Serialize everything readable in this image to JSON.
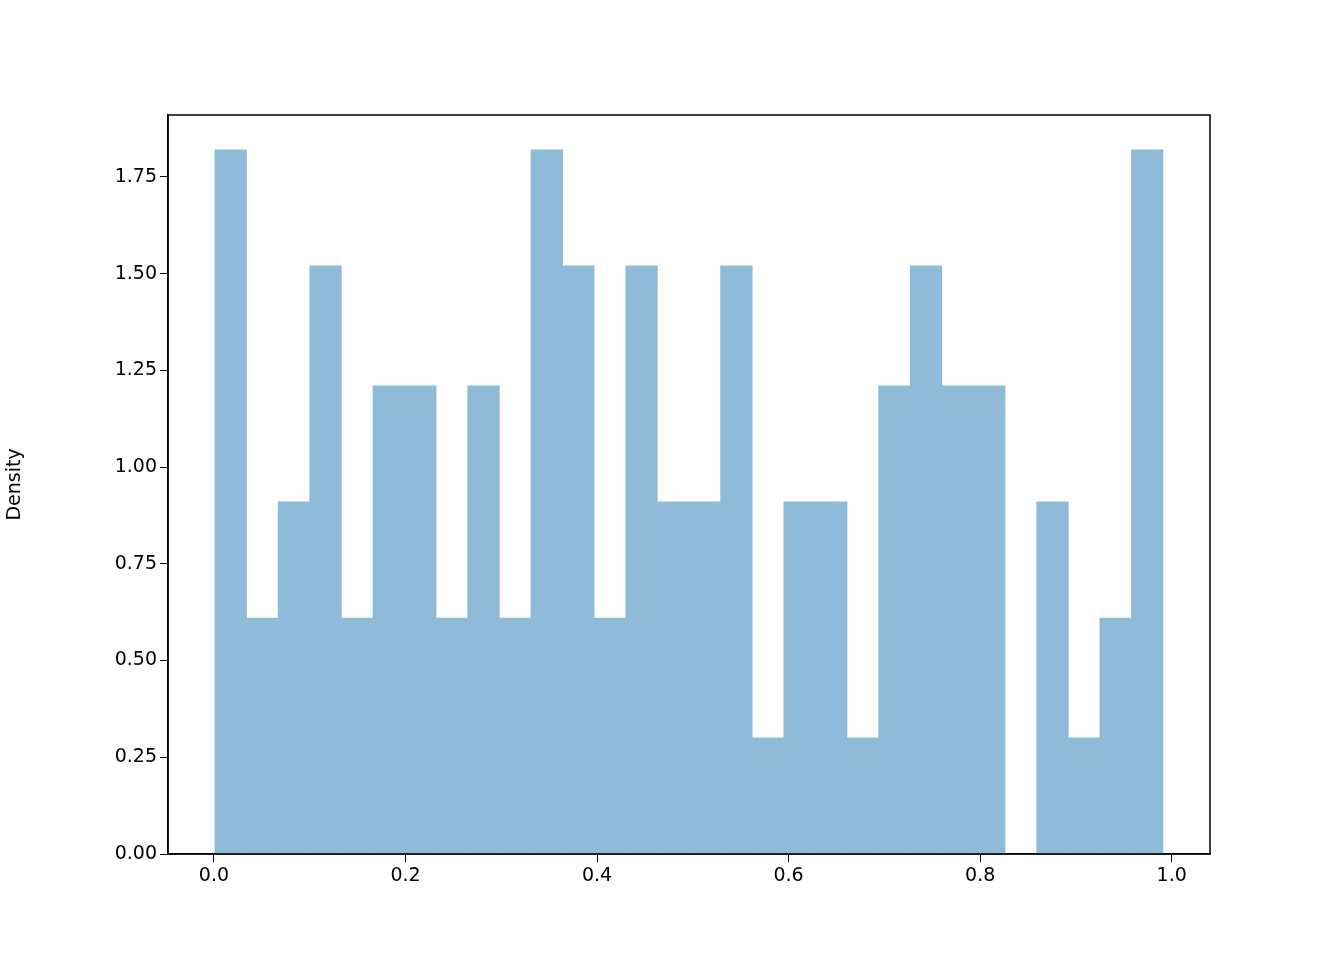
{
  "chart_data": {
    "type": "histogram",
    "ylabel": "Density",
    "bins": [
      0.001,
      0.034,
      0.067,
      0.1,
      0.133,
      0.166,
      0.199,
      0.232,
      0.265,
      0.298,
      0.331,
      0.364,
      0.397,
      0.43,
      0.463,
      0.496,
      0.529,
      0.562,
      0.595,
      0.628,
      0.661,
      0.694,
      0.727,
      0.76,
      0.793,
      0.826,
      0.859,
      0.892,
      0.925,
      0.958,
      0.991
    ],
    "values": [
      1.82,
      0.61,
      0.91,
      1.52,
      0.61,
      1.21,
      1.21,
      0.61,
      1.21,
      0.61,
      1.82,
      1.52,
      0.61,
      1.52,
      0.91,
      0.91,
      1.52,
      0.3,
      0.91,
      0.91,
      0.3,
      1.21,
      1.52,
      1.21,
      1.21,
      0,
      0.91,
      0.3,
      0.61,
      1.82
    ],
    "color": "#8fbbd9",
    "xlim": [
      -0.048,
      1.04
    ],
    "xticks": [
      {
        "value": 0,
        "label": "0.0"
      },
      {
        "value": 0.2,
        "label": "0.2"
      },
      {
        "value": 0.4,
        "label": "0.4"
      },
      {
        "value": 0.6,
        "label": "0.6"
      },
      {
        "value": 0.8,
        "label": "0.8"
      },
      {
        "value": 1,
        "label": "1.0"
      }
    ],
    "ylim": [
      0,
      1.91
    ],
    "yticks": [
      {
        "value": 0,
        "label": "0.00"
      },
      0.25,
      {
        "value": 0.5,
        "label": "0.50"
      },
      {
        "value": 0.75,
        "label": "0.75"
      },
      {
        "value": 1,
        "label": "1.00"
      },
      {
        "value": 1.25,
        "label": "1.25"
      },
      {
        "value": 1.5,
        "label": "1.50"
      },
      {
        "value": 1.75,
        "label": "1.75"
      }
    ],
    "grid": false,
    "legend": false
  }
}
